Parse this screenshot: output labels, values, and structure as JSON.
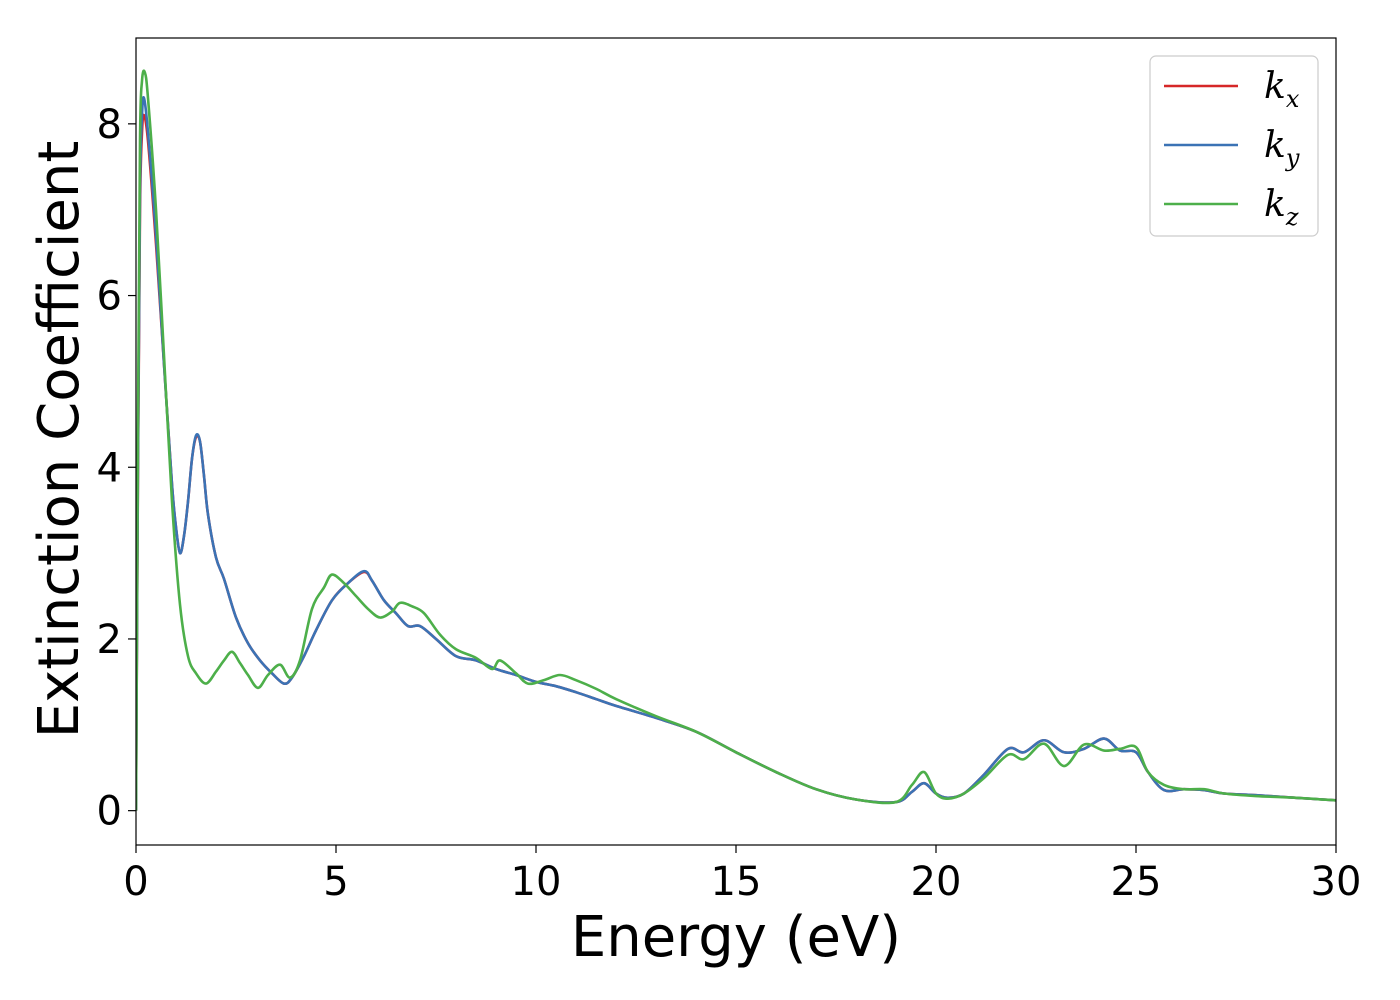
{
  "chart_data": {
    "type": "line",
    "title": "",
    "xlabel": "Energy (eV)",
    "ylabel": "Extinction Coefficient",
    "xlim": [
      0,
      30
    ],
    "ylim": [
      -0.4,
      9.0
    ],
    "xticks": [
      0,
      5,
      10,
      15,
      20,
      25,
      30
    ],
    "yticks": [
      0,
      2,
      4,
      6,
      8
    ],
    "grid": false,
    "legend_position": "top-right",
    "series": [
      {
        "name": "k_x",
        "label_base": "k",
        "label_sub": "x",
        "color": "#d62728",
        "x": [
          0.0,
          0.05,
          0.1,
          0.15,
          0.2,
          0.3,
          0.5,
          0.7,
          0.9,
          1.0,
          1.1,
          1.2,
          1.3,
          1.4,
          1.5,
          1.6,
          1.7,
          1.8,
          2.0,
          2.2,
          2.5,
          2.8,
          3.1,
          3.4,
          3.7,
          3.9,
          4.2,
          4.5,
          4.9,
          5.3,
          5.7,
          5.9,
          6.2,
          6.5,
          6.8,
          7.1,
          7.5,
          8.0,
          8.5,
          9.0,
          9.5,
          10.0,
          10.5,
          11.0,
          11.5,
          12.0,
          13.0,
          14.0,
          15.0,
          16.0,
          17.0,
          18.0,
          19.0,
          19.4,
          19.7,
          20.0,
          20.3,
          20.7,
          21.2,
          21.8,
          22.2,
          22.7,
          23.2,
          23.7,
          24.2,
          24.6,
          25.0,
          25.3,
          25.7,
          26.2,
          26.7,
          27.2,
          28.0,
          29.0,
          30.0
        ],
        "y": [
          0.0,
          4.0,
          7.0,
          7.9,
          8.1,
          7.8,
          6.6,
          5.2,
          3.8,
          3.3,
          3.0,
          3.2,
          3.6,
          4.1,
          4.35,
          4.3,
          3.9,
          3.45,
          2.95,
          2.7,
          2.25,
          1.95,
          1.75,
          1.6,
          1.48,
          1.55,
          1.8,
          2.1,
          2.45,
          2.65,
          2.78,
          2.68,
          2.45,
          2.3,
          2.15,
          2.15,
          2.0,
          1.8,
          1.75,
          1.65,
          1.58,
          1.5,
          1.45,
          1.38,
          1.3,
          1.22,
          1.08,
          0.92,
          0.68,
          0.45,
          0.25,
          0.13,
          0.1,
          0.22,
          0.32,
          0.2,
          0.15,
          0.2,
          0.42,
          0.72,
          0.68,
          0.82,
          0.68,
          0.72,
          0.84,
          0.7,
          0.68,
          0.45,
          0.24,
          0.25,
          0.24,
          0.2,
          0.18,
          0.15,
          0.12
        ]
      },
      {
        "name": "k_y",
        "label_base": "k",
        "label_sub": "y",
        "color": "#3b73b5",
        "x": [
          0.0,
          0.05,
          0.1,
          0.15,
          0.2,
          0.3,
          0.5,
          0.7,
          0.9,
          1.0,
          1.1,
          1.2,
          1.3,
          1.4,
          1.5,
          1.6,
          1.7,
          1.8,
          2.0,
          2.2,
          2.5,
          2.8,
          3.1,
          3.4,
          3.7,
          3.9,
          4.2,
          4.5,
          4.9,
          5.3,
          5.7,
          5.9,
          6.2,
          6.5,
          6.8,
          7.1,
          7.5,
          8.0,
          8.5,
          9.0,
          9.5,
          10.0,
          10.5,
          11.0,
          11.5,
          12.0,
          13.0,
          14.0,
          15.0,
          16.0,
          17.0,
          18.0,
          19.0,
          19.4,
          19.7,
          20.0,
          20.3,
          20.7,
          21.2,
          21.8,
          22.2,
          22.7,
          23.2,
          23.7,
          24.2,
          24.6,
          25.0,
          25.3,
          25.7,
          26.2,
          26.7,
          27.2,
          28.0,
          29.0,
          30.0
        ],
        "y": [
          0.0,
          4.1,
          7.2,
          8.1,
          8.3,
          7.9,
          6.7,
          5.2,
          3.8,
          3.3,
          3.0,
          3.2,
          3.6,
          4.1,
          4.37,
          4.3,
          3.9,
          3.45,
          2.95,
          2.7,
          2.25,
          1.95,
          1.75,
          1.6,
          1.48,
          1.55,
          1.8,
          2.1,
          2.45,
          2.65,
          2.79,
          2.68,
          2.45,
          2.3,
          2.15,
          2.15,
          2.0,
          1.8,
          1.75,
          1.65,
          1.58,
          1.5,
          1.45,
          1.38,
          1.3,
          1.22,
          1.08,
          0.92,
          0.68,
          0.45,
          0.25,
          0.13,
          0.1,
          0.22,
          0.32,
          0.2,
          0.15,
          0.2,
          0.42,
          0.72,
          0.68,
          0.82,
          0.68,
          0.72,
          0.84,
          0.7,
          0.68,
          0.45,
          0.24,
          0.25,
          0.24,
          0.2,
          0.18,
          0.15,
          0.12
        ]
      },
      {
        "name": "k_z",
        "label_base": "k",
        "label_sub": "z",
        "color": "#4daf4a",
        "x": [
          0.0,
          0.05,
          0.1,
          0.15,
          0.22,
          0.3,
          0.5,
          0.7,
          0.9,
          1.1,
          1.3,
          1.5,
          1.75,
          2.0,
          2.2,
          2.4,
          2.6,
          2.8,
          3.05,
          3.3,
          3.6,
          3.85,
          4.1,
          4.4,
          4.7,
          4.9,
          5.2,
          5.5,
          5.8,
          6.1,
          6.4,
          6.6,
          6.9,
          7.2,
          7.6,
          8.0,
          8.5,
          8.9,
          9.1,
          9.5,
          9.8,
          10.2,
          10.6,
          11.0,
          11.5,
          12.0,
          13.0,
          14.0,
          15.0,
          16.0,
          17.0,
          18.0,
          19.0,
          19.4,
          19.7,
          20.0,
          20.3,
          20.7,
          21.2,
          21.8,
          22.2,
          22.7,
          23.2,
          23.7,
          24.2,
          24.6,
          25.0,
          25.3,
          25.7,
          26.2,
          26.7,
          27.2,
          28.0,
          29.0,
          30.0
        ],
        "y": [
          0.0,
          4.5,
          7.8,
          8.5,
          8.6,
          8.3,
          7.0,
          5.3,
          3.6,
          2.4,
          1.8,
          1.6,
          1.48,
          1.62,
          1.75,
          1.85,
          1.72,
          1.58,
          1.43,
          1.58,
          1.7,
          1.55,
          1.75,
          2.35,
          2.6,
          2.75,
          2.65,
          2.5,
          2.35,
          2.25,
          2.32,
          2.42,
          2.38,
          2.3,
          2.05,
          1.88,
          1.78,
          1.65,
          1.75,
          1.6,
          1.48,
          1.52,
          1.58,
          1.52,
          1.42,
          1.3,
          1.1,
          0.92,
          0.68,
          0.45,
          0.25,
          0.13,
          0.1,
          0.3,
          0.45,
          0.2,
          0.14,
          0.2,
          0.38,
          0.65,
          0.6,
          0.78,
          0.52,
          0.77,
          0.7,
          0.72,
          0.74,
          0.45,
          0.3,
          0.25,
          0.25,
          0.2,
          0.17,
          0.15,
          0.12
        ]
      }
    ]
  }
}
